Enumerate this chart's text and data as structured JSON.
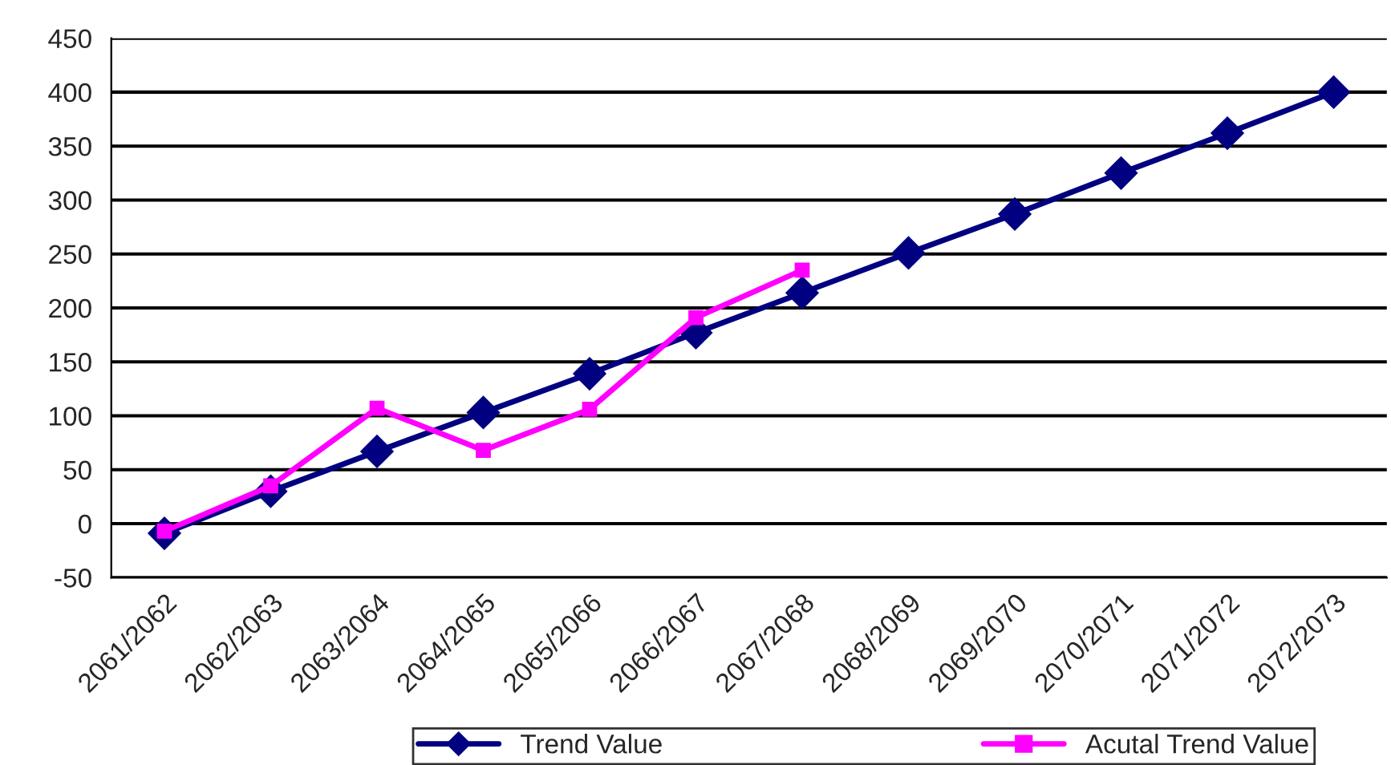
{
  "chart_data": {
    "type": "line",
    "categories": [
      "2061/2062",
      "2062/2063",
      "2063/2064",
      "2064/2065",
      "2065/2066",
      "2066/2067",
      "2067/2068",
      "2068/2069",
      "2069/2070",
      "2070/2071",
      "2071/2072",
      "2072/2073"
    ],
    "series": [
      {
        "name": "Trend Value",
        "color": "#000080",
        "marker": "diamond",
        "values": [
          -9,
          30,
          67,
          103,
          139,
          177,
          214,
          251,
          287,
          325,
          362,
          400
        ]
      },
      {
        "name": "Acutal Trend Value",
        "color": "#ff00ff",
        "marker": "square",
        "values": [
          -7,
          35,
          107,
          68,
          106,
          191,
          235,
          null,
          null,
          null,
          null,
          null
        ]
      }
    ],
    "ylim": [
      -50,
      450
    ],
    "yticks": [
      -50,
      0,
      50,
      100,
      150,
      200,
      250,
      300,
      350,
      400,
      450
    ],
    "grid": "y",
    "legend": "bottom",
    "line_style": "solid"
  }
}
